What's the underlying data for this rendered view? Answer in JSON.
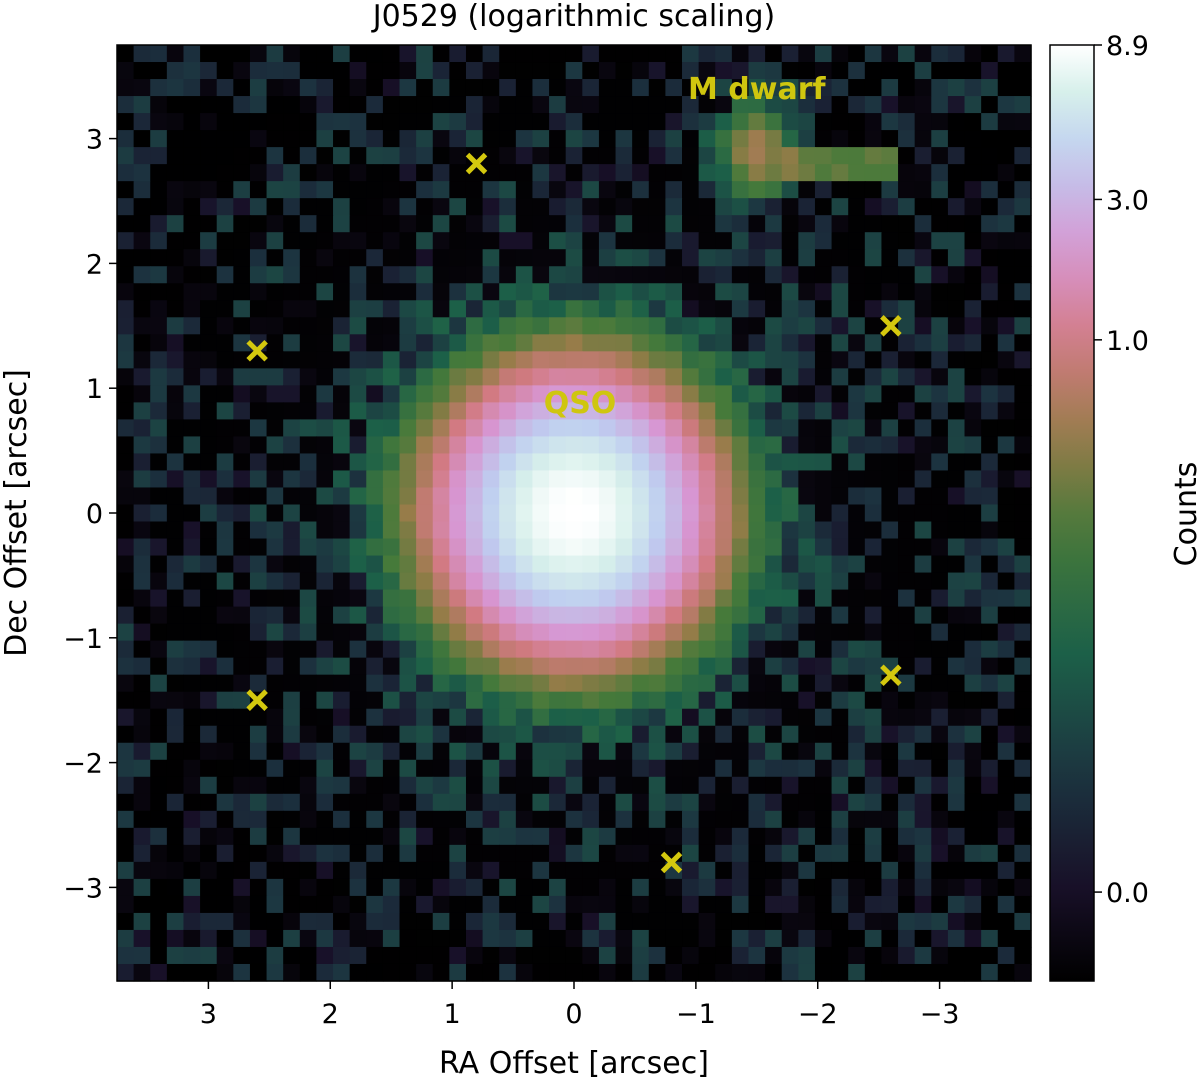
{
  "chart_data": {
    "type": "heatmap",
    "title": "J0529 (logarithmic scaling)",
    "xlabel": "RA Offset [arcsec]",
    "ylabel": "Dec Offset [arcsec]",
    "xlim": [
      3.75,
      -3.75
    ],
    "ylim": [
      -3.75,
      3.75
    ],
    "x_ticks": [
      3,
      2,
      1,
      0,
      -1,
      -2,
      -3
    ],
    "x_tick_labels": [
      "3",
      "2",
      "1",
      "0",
      "−1",
      "−2",
      "−3"
    ],
    "y_ticks": [
      3,
      2,
      1,
      0,
      -1,
      -2,
      -3
    ],
    "y_tick_labels": [
      "3",
      "2",
      "1",
      "0",
      "−1",
      "−2",
      "−3"
    ],
    "scaling": "logarithmic",
    "colormap": "cubehelix",
    "colorbar": {
      "label": "Counts",
      "ticks": [
        8.9,
        3.0,
        1.0,
        0.0
      ],
      "tick_labels": [
        "8.9",
        "3.0",
        "1.0",
        "0.0"
      ]
    },
    "sources": [
      {
        "label": "QSO",
        "x": 0.0,
        "y": 0.0,
        "peak": 8.9,
        "width": 0.55
      },
      {
        "label": "M dwarf",
        "x": -1.5,
        "y": 2.9,
        "peak": 0.55,
        "width": 0.22
      }
    ],
    "markers": [
      {
        "x": 0.8,
        "y": 2.8
      },
      {
        "x": 2.6,
        "y": 1.3
      },
      {
        "x": -2.6,
        "y": 1.5
      },
      {
        "x": 2.6,
        "y": -1.5
      },
      {
        "x": -2.6,
        "y": -1.3
      },
      {
        "x": -0.8,
        "y": -2.8
      }
    ],
    "colors": {
      "marker": "#d4c80e",
      "annotation": "#cfc60f",
      "background": "#000000"
    }
  }
}
